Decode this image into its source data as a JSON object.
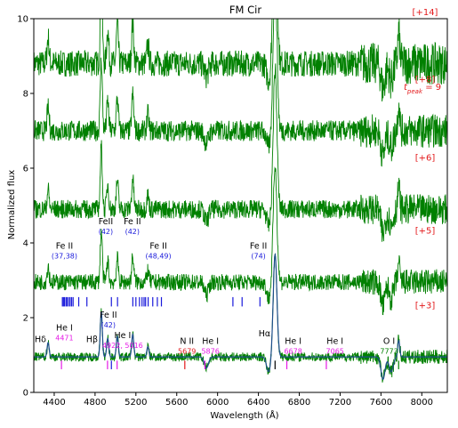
{
  "chart_data": {
    "type": "line",
    "title": "FM Cir",
    "xlabel": "Wavelength ($\\AA$)",
    "xlabel_text": "Wavelength (Å)",
    "ylabel": "Normalized flux",
    "xlim": [
      4200,
      8250
    ],
    "ylim": [
      0,
      10
    ],
    "xticks": [
      4400,
      4800,
      5200,
      5600,
      6000,
      6400,
      6800,
      7200,
      7600,
      8000
    ],
    "yticks": [
      0,
      2,
      4,
      6,
      8,
      10
    ],
    "grid": false,
    "series_colors": {
      "spectrum": "#008000",
      "model": "#1f4e8c"
    },
    "series": [
      {
        "offset_label": "[+14]",
        "baseline": 8.8,
        "noise": 0.35
      },
      {
        "offset_label": "[+8]",
        "baseline": 7.0,
        "noise": 0.28
      },
      {
        "offset_label": "[+6]",
        "baseline": 4.9,
        "noise": 0.25
      },
      {
        "offset_label": "[+5]",
        "baseline": 2.95,
        "noise": 0.22
      },
      {
        "offset_label": "[+3]",
        "baseline": 0.95,
        "noise": 0.12
      }
    ],
    "offset_label_color": "#e31a1c",
    "tpeak_label": "t_peak = 9",
    "tpeak_parts": {
      "t": "t",
      "sub": "peak",
      "rest": " = 9"
    },
    "emission_lines": [
      {
        "x": 4101,
        "height": 0.6
      },
      {
        "x": 4340,
        "height": 0.7
      },
      {
        "x": 4861,
        "height": 2.2
      },
      {
        "x": 4924,
        "height": 0.9
      },
      {
        "x": 5018,
        "height": 1.0
      },
      {
        "x": 5169,
        "height": 1.1
      },
      {
        "x": 5317,
        "height": 0.5
      },
      {
        "x": 6563,
        "height": 5.0
      },
      {
        "x": 7774,
        "height": 0.8
      }
    ],
    "absorption_lines": [
      {
        "x": 6500,
        "depth": 0.4
      },
      {
        "x": 7620,
        "depth": 0.6
      },
      {
        "x": 7700,
        "depth": 0.4
      },
      {
        "x": 5890,
        "depth": 0.3
      }
    ],
    "annotations": [
      {
        "text": "Fe II",
        "sub": "(37,38)",
        "x": 4500,
        "y": 3.85,
        "color": "#000000",
        "sub_color": "#1a1adb"
      },
      {
        "text": "FeII",
        "sub": "(42)",
        "x": 4905,
        "y": 4.5,
        "color": "#000000",
        "sub_color": "#1a1adb"
      },
      {
        "text": "Fe II",
        "sub": "(42)",
        "x": 5165,
        "y": 4.5,
        "color": "#000000",
        "sub_color": "#1a1adb"
      },
      {
        "text": "Fe II",
        "sub": "(48,49)",
        "x": 5420,
        "y": 3.85,
        "color": "#000000",
        "sub_color": "#1a1adb"
      },
      {
        "text": "Fe II",
        "sub": "(74)",
        "x": 6400,
        "y": 3.85,
        "color": "#000000",
        "sub_color": "#1a1adb"
      },
      {
        "text": "Fe II",
        "sub": "(42)",
        "x": 4930,
        "y": 2.0,
        "color": "#000000",
        "sub_color": "#1a1adb"
      },
      {
        "text": "He I",
        "sub": "4471",
        "x": 4500,
        "y": 1.65,
        "color": "#000000",
        "sub_color": "#e61ae6"
      },
      {
        "text": "He I",
        "sub": "4922, 5016",
        "x": 5070,
        "y": 1.45,
        "color": "#000000",
        "sub_color": "#e61ae6"
      },
      {
        "text": "N II",
        "sub": "5679",
        "x": 5700,
        "y": 1.3,
        "color": "#000000",
        "sub_color": "#e31a1c"
      },
      {
        "text": "He I",
        "sub": "5876",
        "x": 5930,
        "y": 1.3,
        "color": "#000000",
        "sub_color": "#e61ae6"
      },
      {
        "text": "He I",
        "sub": "6678",
        "x": 6740,
        "y": 1.3,
        "color": "#000000",
        "sub_color": "#e61ae6"
      },
      {
        "text": "He I",
        "sub": "7065",
        "x": 7150,
        "y": 1.3,
        "color": "#000000",
        "sub_color": "#e61ae6"
      },
      {
        "text": "O I",
        "sub": "7773",
        "x": 7680,
        "y": 1.3,
        "color": "#000000",
        "sub_color": "#008000"
      }
    ],
    "greek_labels": [
      {
        "text": "Hδ",
        "x": 4265,
        "y": 1.35
      },
      {
        "text": "Hβ",
        "x": 4770,
        "y": 1.35
      },
      {
        "text": "Hα",
        "x": 6460,
        "y": 1.5
      }
    ],
    "fe_ticks_x": [
      4480,
      4490,
      4500,
      4515,
      4525,
      4540,
      4555,
      4570,
      4585,
      4640,
      4720,
      4960,
      5020,
      5170,
      5200,
      5235,
      5260,
      5280,
      5295,
      5320,
      5365,
      5410,
      5450,
      6150,
      6240,
      6415
    ],
    "fe_tick_color": "#1a1adb",
    "lower_ticks": [
      {
        "x": 4471,
        "color": "#e61ae6"
      },
      {
        "x": 4922,
        "color": "#e61ae6"
      },
      {
        "x": 5016,
        "color": "#e61ae6"
      },
      {
        "x": 4960,
        "color": "#1a1adb"
      },
      {
        "x": 5679,
        "color": "#e31a1c"
      },
      {
        "x": 5876,
        "color": "#e61ae6"
      },
      {
        "x": 6563,
        "color": "#000000"
      },
      {
        "x": 6678,
        "color": "#e61ae6"
      },
      {
        "x": 7065,
        "color": "#e61ae6"
      },
      {
        "x": 7773,
        "color": "#008000"
      }
    ]
  }
}
